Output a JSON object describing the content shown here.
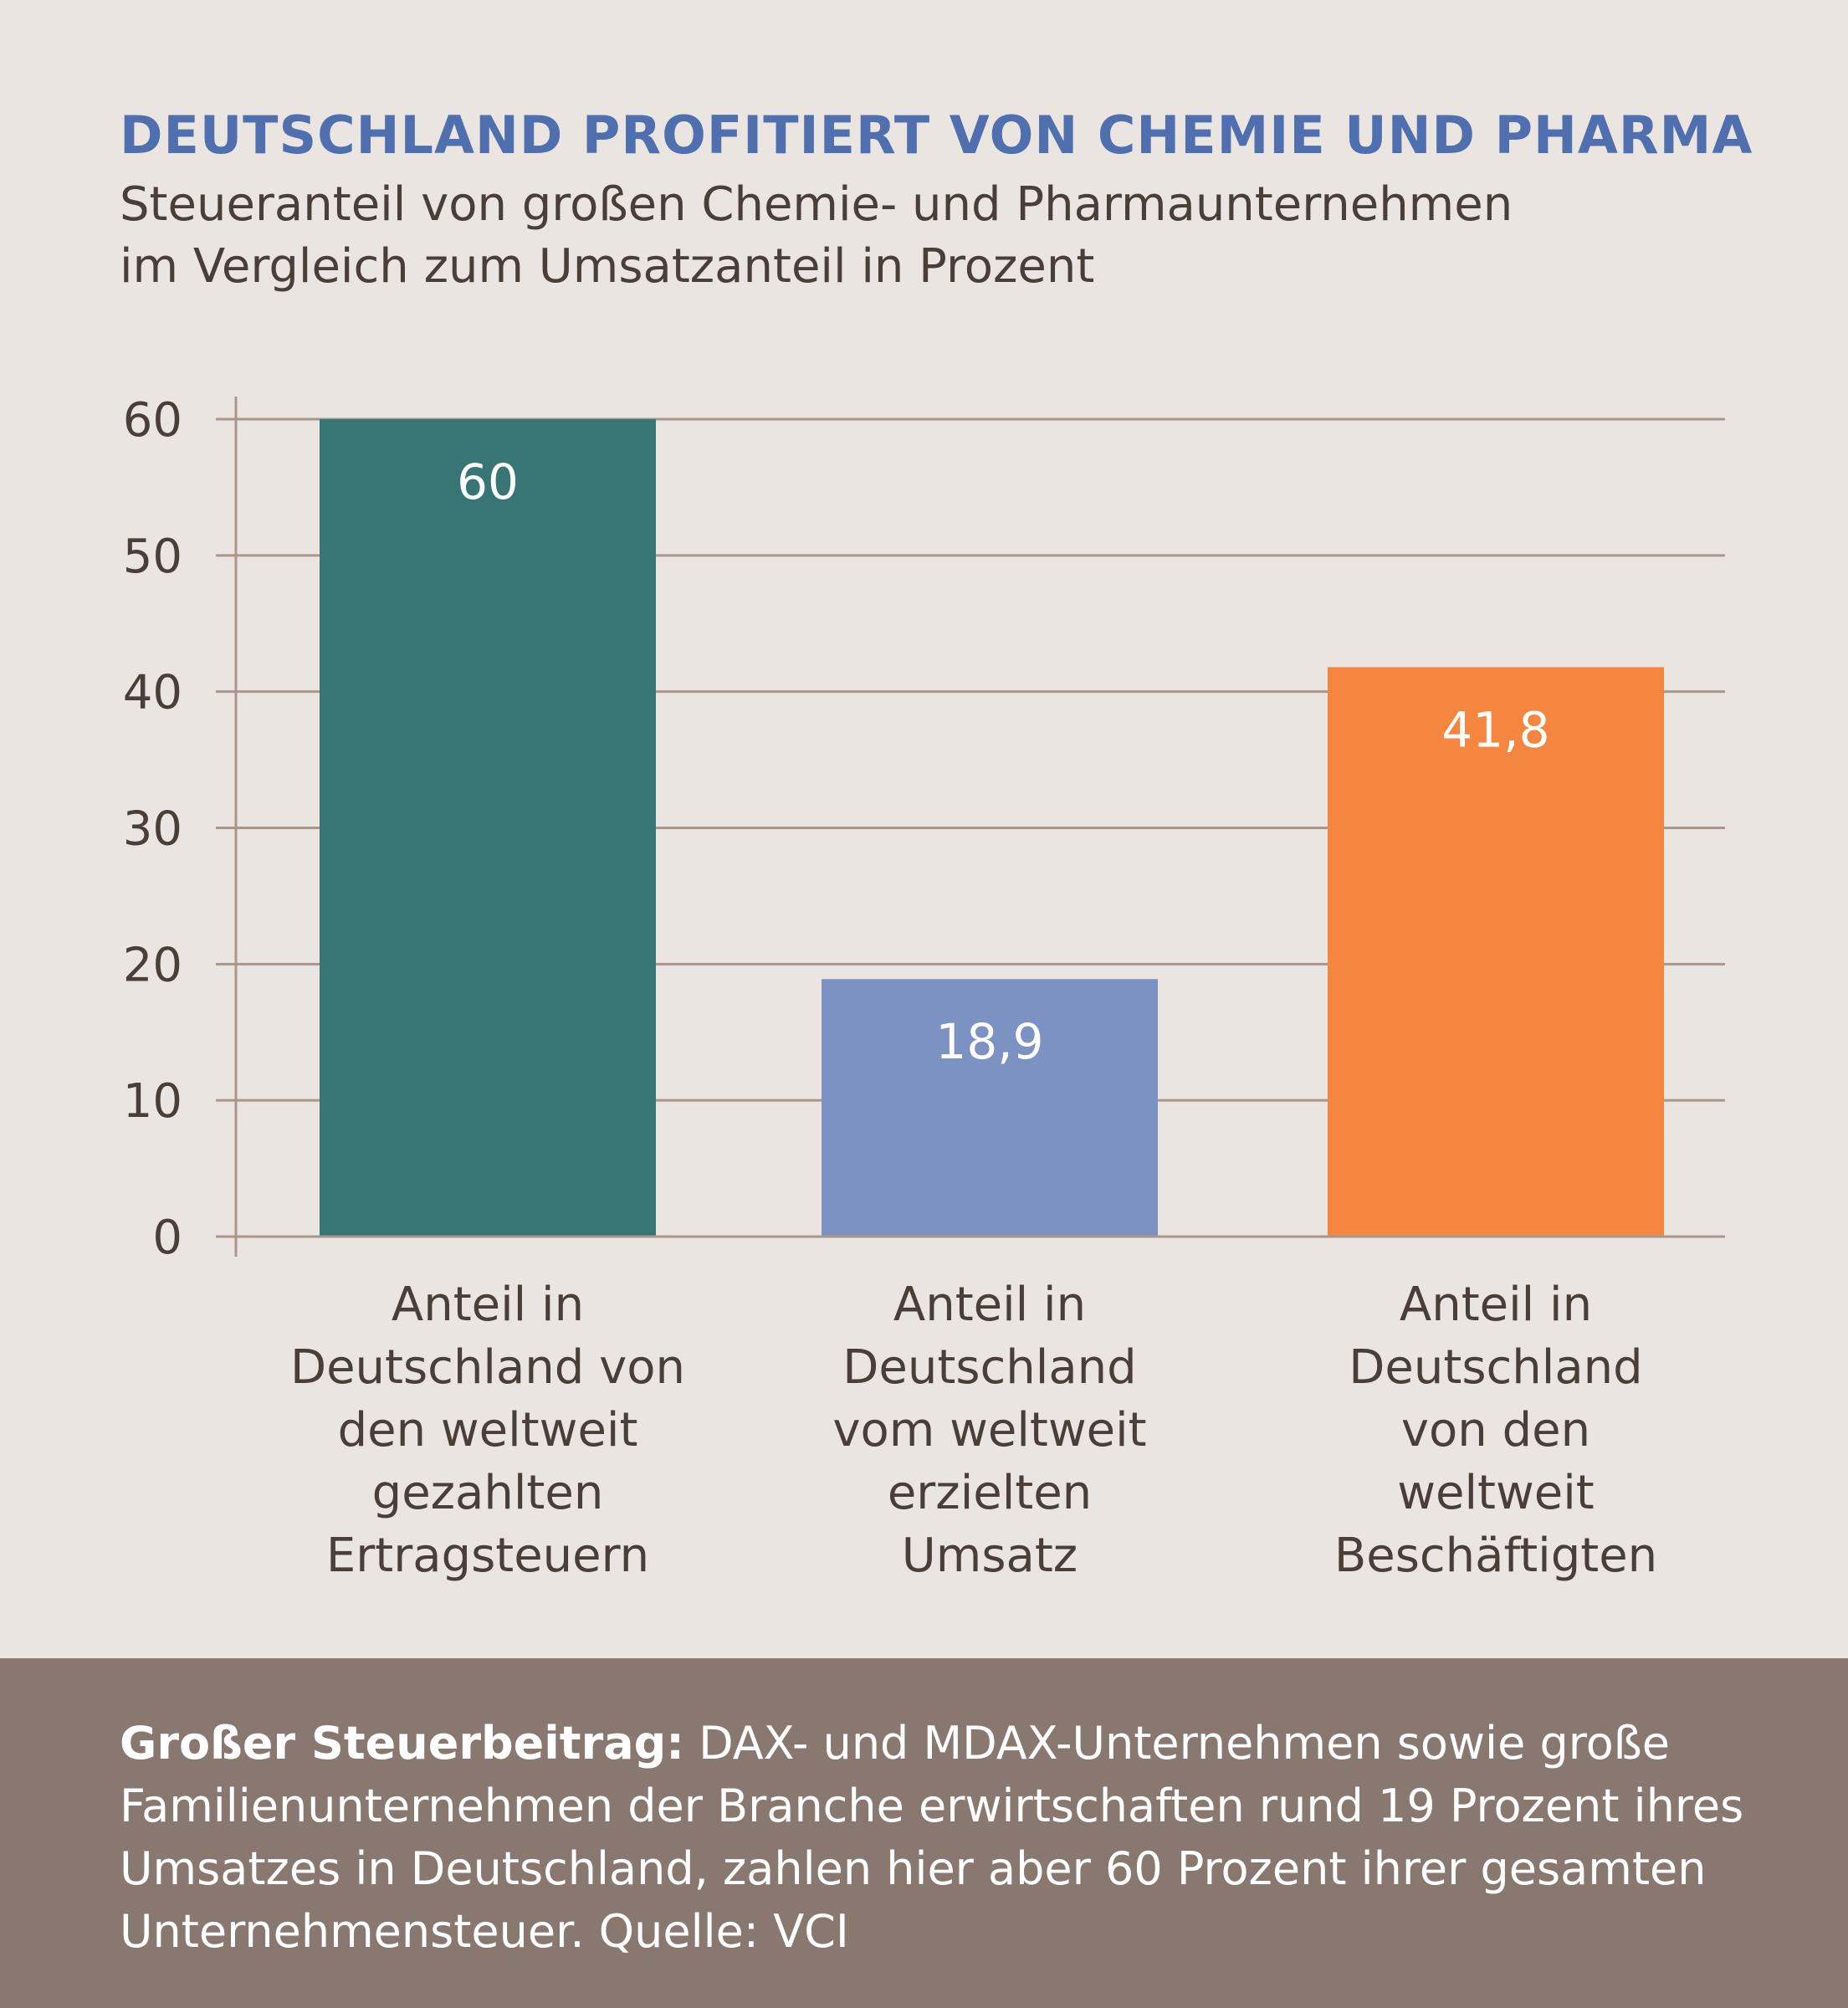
{
  "title": "DEUTSCHLAND PROFITIERT VON CHEMIE UND PHARMA",
  "subtitle_line1": "Steueranteil von großen Chemie- und Pharmaunternehmen",
  "subtitle_line2": "im Vergleich zum Umsatzanteil in Prozent",
  "chart_data": {
    "type": "bar",
    "categories": [
      "Anteil in Deutschland von den weltweit gezahlten Ertragsteuern",
      "Anteil in Deutschland vom weltweit erzielten Umsatz",
      "Anteil in Deutschland von den weltweit Beschäftigten"
    ],
    "category_lines": [
      [
        "Anteil in",
        "Deutschland von",
        "den weltweit",
        "gezahlten",
        "Ertragsteuern"
      ],
      [
        "Anteil in",
        "Deutschland",
        "vom weltweit",
        "erzielten",
        "Umsatz"
      ],
      [
        "Anteil in",
        "Deutschland",
        "von den",
        "weltweit",
        "Beschäftigten"
      ]
    ],
    "values": [
      60,
      18.9,
      41.8
    ],
    "value_labels": [
      "60",
      "18,9",
      "41,8"
    ],
    "bar_colors": [
      "#377674",
      "#7b92c3",
      "#f4863f"
    ],
    "yticks": [
      0,
      10,
      20,
      30,
      40,
      50,
      60
    ],
    "ylim": [
      0,
      60
    ],
    "grid": true,
    "xlabel": "",
    "ylabel": ""
  },
  "footer": {
    "bold": "Großer Steuerbeitrag:",
    "text": " DAX- und MDAX-Unternehmen sowie große Familienunternehmen der Branche erwirtschaften rund 19 Prozent ihres Umsatzes in Deutschland, zahlen hier aber 60 Prozent ihrer gesamten Unternehmensteuer. Quelle: VCI"
  }
}
